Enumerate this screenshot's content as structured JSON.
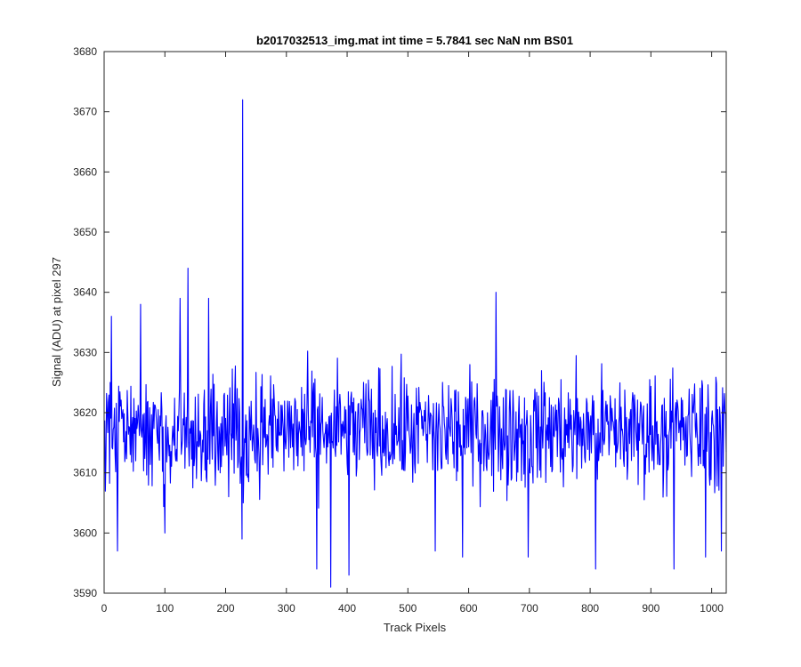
{
  "chart_data": {
    "type": "line",
    "title": "b2017032513_img.mat int time = 5.7841 sec  NaN nm BS01",
    "xlabel": "Track Pixels",
    "ylabel": "Signal (ADU) at pixel 297",
    "xlim": [
      0,
      1024
    ],
    "ylim": [
      3590,
      3680
    ],
    "xticks": [
      0,
      100,
      200,
      300,
      400,
      500,
      600,
      700,
      800,
      900,
      1000
    ],
    "yticks": [
      3590,
      3600,
      3610,
      3620,
      3630,
      3640,
      3650,
      3660,
      3670,
      3680
    ],
    "grid": false,
    "legend": "none",
    "series": [
      {
        "color": "#0000ff",
        "n_points": 1024,
        "x_start": 1,
        "mean": 3617,
        "noise_amplitude": 14,
        "x": [
          12,
          22,
          60,
          100,
          125,
          138,
          172,
          227,
          228,
          229,
          350,
          373,
          403,
          545,
          590,
          645,
          698,
          809,
          938,
          990,
          1016
        ],
        "y": [
          3636,
          3597,
          3638,
          3600,
          3639,
          3644,
          3639,
          3599,
          3672,
          3605,
          3594,
          3591,
          3593,
          3597,
          3596,
          3640,
          3596,
          3594,
          3594,
          3596,
          3597
        ]
      }
    ]
  }
}
